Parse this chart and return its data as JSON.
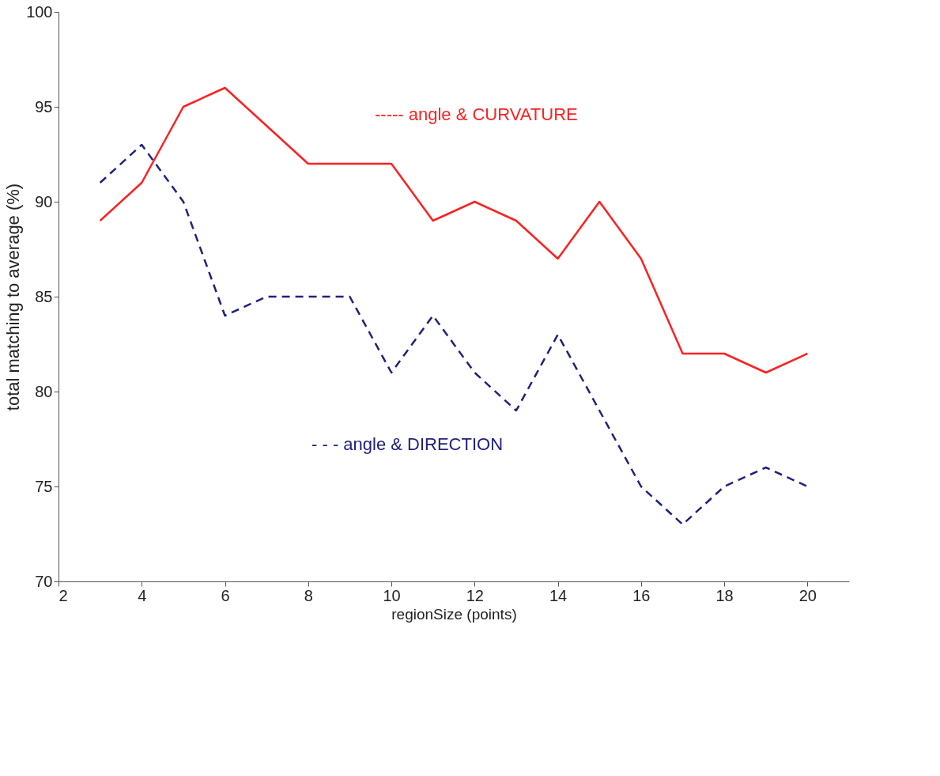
{
  "chart_data": {
    "type": "line",
    "xlabel": "regionSize (points)",
    "ylabel": "total matching to average (%)",
    "x": [
      3,
      4,
      5,
      6,
      7,
      8,
      9,
      10,
      11,
      12,
      13,
      14,
      15,
      16,
      17,
      18,
      19,
      20
    ],
    "series": [
      {
        "name": "----- angle & CURVATURE",
        "color": "#ff2020",
        "line_style": "solid",
        "values": [
          89,
          91,
          95,
          96,
          94,
          92,
          92,
          92,
          89,
          90,
          89,
          87,
          90,
          87,
          82,
          82,
          81,
          82
        ]
      },
      {
        "name": "- - - angle & DIRECTION",
        "color": "#202080",
        "line_style": "dashed",
        "values": [
          91,
          93,
          90,
          84,
          85,
          85,
          85,
          81,
          84,
          81,
          79,
          83,
          79,
          75,
          73,
          75,
          76,
          75
        ]
      }
    ],
    "xlim": [
      2,
      21
    ],
    "ylim": [
      70,
      100
    ],
    "xticks": [
      2,
      4,
      6,
      8,
      10,
      12,
      14,
      16,
      18,
      20
    ],
    "yticks": [
      70,
      75,
      80,
      85,
      90,
      95,
      100
    ],
    "grid": false,
    "legend": false,
    "marker": "none"
  }
}
